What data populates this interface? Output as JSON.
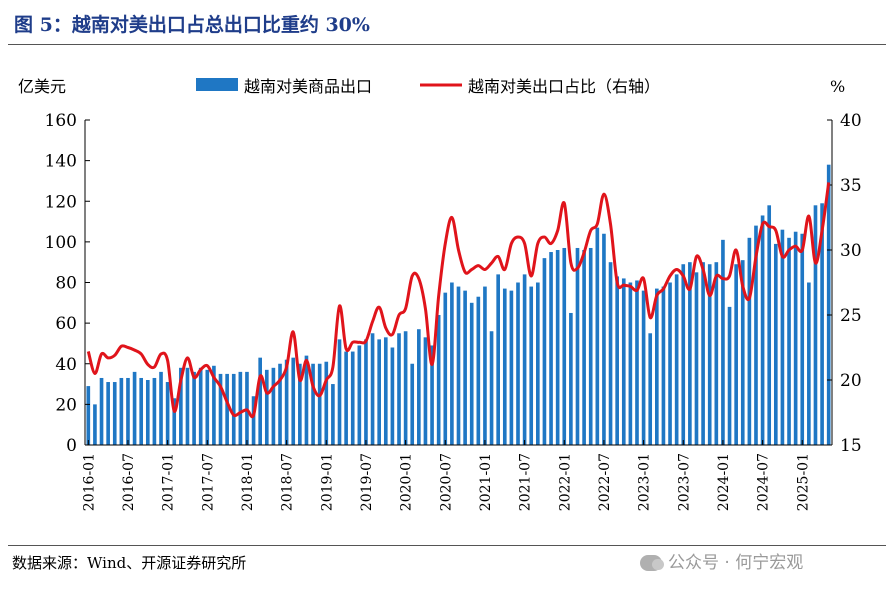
{
  "figure": {
    "title": "图 5：越南对美出口占总出口比重约 30%",
    "source": "数据来源：Wind、开源证券研究所",
    "watermark": "公众号 · 何宁宏观"
  },
  "colors": {
    "bar": "#1f77c4",
    "line": "#e0141b",
    "title": "#1f3d8a"
  },
  "chart_data": {
    "type": "bar+line",
    "title": "越南对美出口占总出口比重约 30%",
    "left_axis": {
      "label": "亿美元",
      "ylim": [
        0,
        160
      ],
      "ticks": [
        0,
        20,
        40,
        60,
        80,
        100,
        120,
        140,
        160
      ]
    },
    "right_axis": {
      "label": "%",
      "ylim": [
        15,
        40
      ],
      "ticks": [
        15,
        20,
        25,
        30,
        35,
        40
      ]
    },
    "x_start": "2016-01",
    "x_end": "2025-05",
    "x_tick_labels": [
      "2016-01",
      "2016-07",
      "2017-01",
      "2017-07",
      "2018-01",
      "2018-07",
      "2019-01",
      "2019-07",
      "2020-01",
      "2020-07",
      "2021-01",
      "2021-07",
      "2022-01",
      "2022-07",
      "2023-01",
      "2023-07",
      "2024-01",
      "2024-07",
      "2025-01"
    ],
    "legend": [
      "越南对美商品出口",
      "越南对美出口占比（右轴）"
    ],
    "legend_position": "top",
    "series": [
      {
        "name": "越南对美商品出口",
        "axis": "left",
        "type": "bar",
        "values": [
          29,
          20,
          33,
          31,
          31,
          33,
          33,
          36,
          33,
          32,
          33,
          36,
          31,
          23,
          38,
          38,
          36,
          38,
          37,
          39,
          35,
          35,
          35,
          36,
          36,
          24,
          43,
          37,
          38,
          40,
          42,
          43,
          40,
          44,
          40,
          40,
          41,
          30,
          52,
          46,
          46,
          49,
          52,
          55,
          52,
          53,
          48,
          55,
          56,
          40,
          57,
          53,
          49,
          64,
          75,
          80,
          78,
          76,
          70,
          73,
          78,
          56,
          84,
          77,
          76,
          80,
          84,
          78,
          80,
          92,
          95,
          96,
          97,
          65,
          97,
          96,
          97,
          107,
          104,
          90,
          83,
          82,
          80,
          81,
          76,
          55,
          77,
          78,
          80,
          84,
          89,
          90,
          85,
          90,
          89,
          90,
          101,
          68,
          89,
          91,
          102,
          108,
          113,
          118,
          99,
          106,
          102,
          105,
          104,
          80,
          118,
          119,
          138
        ]
      },
      {
        "name": "越南对美出口占比（右轴）",
        "axis": "right",
        "type": "line",
        "values": [
          22.2,
          20.5,
          22.0,
          21.7,
          21.9,
          22.6,
          22.5,
          22.3,
          22.0,
          21.2,
          21.0,
          22.0,
          21.5,
          17.6,
          20.0,
          21.7,
          20.2,
          20.8,
          21.1,
          20.2,
          19.5,
          18.3,
          17.3,
          17.5,
          17.7,
          17.3,
          20.3,
          19.0,
          19.5,
          20.0,
          21.0,
          23.7,
          20.0,
          21.5,
          19.5,
          18.8,
          20.0,
          21.0,
          25.7,
          22.4,
          22.9,
          22.9,
          23.0,
          24.5,
          25.6,
          24.0,
          23.5,
          25.0,
          25.5,
          28.0,
          27.8,
          25.5,
          21.2,
          26.5,
          30.5,
          32.5,
          30.0,
          28.3,
          28.5,
          28.8,
          28.5,
          29.0,
          29.5,
          28.5,
          30.5,
          31.0,
          30.5,
          28.0,
          30.5,
          31.0,
          30.5,
          31.5,
          33.6,
          29.0,
          28.6,
          29.8,
          31.5,
          32.0,
          34.3,
          32.0,
          27.5,
          27.3,
          27.2,
          26.9,
          27.8,
          24.8,
          26.5,
          27.0,
          28.0,
          28.5,
          28.0,
          27.0,
          29.5,
          28.5,
          26.5,
          28.0,
          27.8,
          28.0,
          30.0,
          27.2,
          26.3,
          29.5,
          32.0,
          31.8,
          31.5,
          29.5,
          30.0,
          30.3,
          30.0,
          32.6,
          29.0,
          31.5,
          35.2
        ]
      }
    ]
  }
}
